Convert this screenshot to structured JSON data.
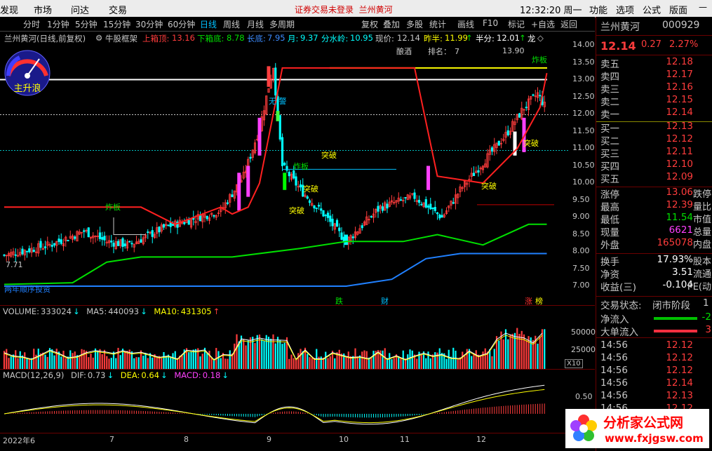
{
  "menu": {
    "items": [
      "发现",
      "市场",
      "问达",
      "交易"
    ],
    "center_notice": "证券交易未登录",
    "center_stock": "兰州黄河",
    "clock": "12:32:20 周一",
    "right_items": [
      "功能",
      "选项",
      "公式",
      "版面"
    ]
  },
  "timeframes": {
    "items": [
      "分时",
      "1分钟",
      "5分钟",
      "15分钟",
      "30分钟",
      "60分钟",
      "日线",
      "周线",
      "月线",
      "多周期"
    ],
    "active": "日线",
    "right_items": [
      "复权",
      "叠加",
      "多股",
      "统计",
      "画线",
      "F10",
      "标记",
      "+自选",
      "返回"
    ]
  },
  "info": {
    "stock_label": "兰州黄河(日线,前复权)",
    "indicator": "牛股框架",
    "upper_box_label": "上箱顶:",
    "upper_box_value": "13.16",
    "lower_box_label": "下箱底:",
    "lower_box_value": "8.78",
    "long_bottom_label": "长底:",
    "long_bottom_value": "7.95",
    "month_label": "月:",
    "month_value": "9.37",
    "watershed_label": "分水岭:",
    "watershed_value": "10.95",
    "price_label": "现价:",
    "price_value": "12.14",
    "yesterday_half_label": "昨半:",
    "yesterday_half_value": "11.99",
    "half_label": "半分:",
    "half_value": "12.01",
    "dragon_label": "龙"
  },
  "chart_annotations": {
    "brew": "酿酒",
    "rank_label": "排名：",
    "rank_value": "7",
    "high_marker": "13.90",
    "low_marker": "7.71",
    "no_warning": "无 警",
    "tag_zhaban": "炸板",
    "tag_tupo": "突破",
    "bottom_left_text": "两年顺序投资",
    "bottom_tags": [
      "跌",
      "财",
      "涨",
      "榜"
    ],
    "gauge_label": "主升浪"
  },
  "price_axis": [
    "14.00",
    "13.50",
    "13.00",
    "12.50",
    "12.00",
    "11.50",
    "11.00",
    "10.50",
    "10.00",
    "9.50",
    "9.00",
    "8.50",
    "8.00",
    "7.50",
    "7.00"
  ],
  "volume": {
    "label": "VOLUME:",
    "value": "333024",
    "ma5_label": "MA5:",
    "ma5_value": "440093",
    "ma10_label": "MA10:",
    "ma10_value": "431305",
    "axis": [
      "50000",
      "25000"
    ],
    "unit": "X10"
  },
  "macd": {
    "label": "MACD(12,26,9)",
    "dif_label": "DIF:",
    "dif_value": "0.73",
    "dea_label": "DEA:",
    "dea_value": "0.64",
    "macd_label": "MACD:",
    "macd_value": "0.18",
    "axis": [
      "0.50"
    ]
  },
  "x_axis": [
    "2022年6",
    "7",
    "8",
    "9",
    "10",
    "11",
    "12"
  ],
  "quote": {
    "name": "兰州黄河",
    "code": "000929",
    "price": "12.14",
    "change": "0.27",
    "change_pct": "2.27%",
    "asks": [
      {
        "label": "卖五",
        "price": "12.18"
      },
      {
        "label": "卖四",
        "price": "12.17"
      },
      {
        "label": "卖三",
        "price": "12.16"
      },
      {
        "label": "卖二",
        "price": "12.15"
      },
      {
        "label": "卖一",
        "price": "12.14"
      }
    ],
    "bids": [
      {
        "label": "买一",
        "price": "12.13"
      },
      {
        "label": "买二",
        "price": "12.12"
      },
      {
        "label": "买三",
        "price": "12.11"
      },
      {
        "label": "买四",
        "price": "12.10"
      },
      {
        "label": "买五",
        "price": "12.09"
      }
    ],
    "stats": [
      {
        "label": "涨停",
        "value": "13.06",
        "tail": "跌停"
      },
      {
        "label": "最高",
        "value": "12.39",
        "tail": "量比"
      },
      {
        "label": "最低",
        "value": "11.54",
        "tail": "市值"
      },
      {
        "label": "现量",
        "value": "6621",
        "tail": "总量"
      },
      {
        "label": "外盘",
        "value": "165078",
        "tail": "内盘"
      }
    ],
    "stats2": [
      {
        "label": "换手",
        "value": "17.93%",
        "tail": "股本"
      },
      {
        "label": "净资",
        "value": "3.51",
        "tail": "流通"
      },
      {
        "label": "收益(三)",
        "value": "-0.104",
        "tail": "PE(动"
      }
    ],
    "trade_status_label": "交易状态:",
    "trade_status_value": "闭市阶段",
    "trade_status_tail": "1",
    "net_inflow_label": "净流入",
    "net_inflow_value": "-2",
    "big_inflow_label": "大单流入",
    "big_inflow_value": "3",
    "ticks": [
      {
        "time": "14:56",
        "price": "12.12"
      },
      {
        "time": "14:56",
        "price": "12.12"
      },
      {
        "time": "14:56",
        "price": "12.12"
      },
      {
        "time": "14:56",
        "price": "12.14"
      },
      {
        "time": "14:56",
        "price": "12.13"
      },
      {
        "time": "14:56",
        "price": "12.12"
      }
    ]
  },
  "watermark": {
    "title": "分析家公式网",
    "url": "www.fxjgsw.com"
  },
  "colors": {
    "up": "#ff3c3c",
    "down": "#00ffff",
    "ma_red": "#ff2020",
    "support_green": "#00e000",
    "support_blue": "#2080ff",
    "yellow_line": "#ffff00"
  }
}
